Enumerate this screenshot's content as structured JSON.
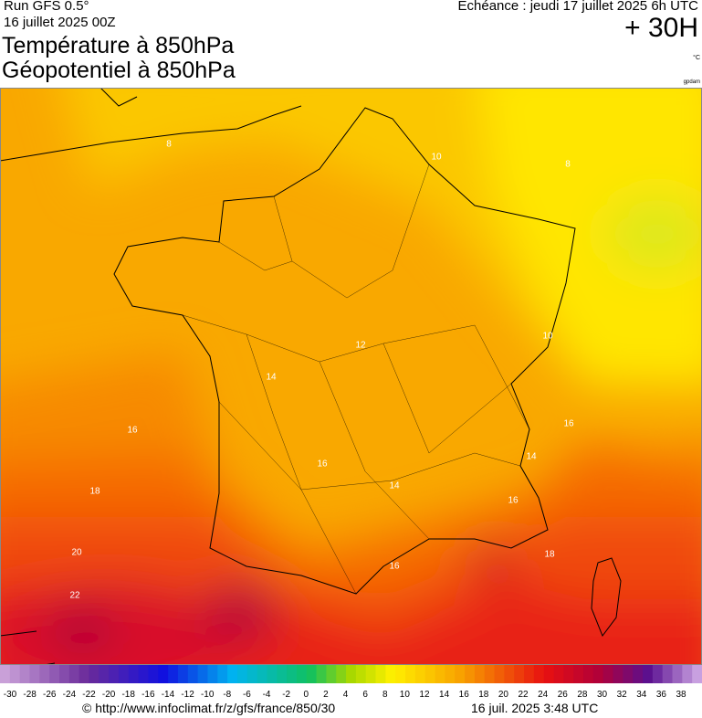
{
  "header": {
    "run": "Run GFS 0.5°",
    "run_date": "16 juillet 2025 00Z",
    "title_line1": "Température à 850hPa",
    "title_line2": "Géopotentiel à 850hPa",
    "forecast": "Echéance : jeudi 17 juillet 2025 6h UTC",
    "lead": "+ 30H",
    "unit": "°C",
    "credit": "gpdam"
  },
  "map": {
    "contour_labels": [
      8,
      10,
      8,
      12,
      14,
      10,
      16,
      16,
      14,
      18,
      16,
      14,
      16,
      20,
      18,
      16,
      22
    ]
  },
  "legend": {
    "labels": [
      -30,
      -28,
      -26,
      -24,
      -22,
      -20,
      -18,
      -16,
      -14,
      -12,
      -10,
      -8,
      -6,
      -4,
      -2,
      0,
      2,
      4,
      6,
      8,
      10,
      12,
      14,
      16,
      18,
      20,
      22,
      24,
      26,
      28,
      30,
      32,
      34,
      36,
      38
    ]
  },
  "footer": {
    "url": "© http://www.infoclimat.fr/z/gfs/france/850/30",
    "timestamp": "16 juil. 2025  3:48 UTC"
  }
}
